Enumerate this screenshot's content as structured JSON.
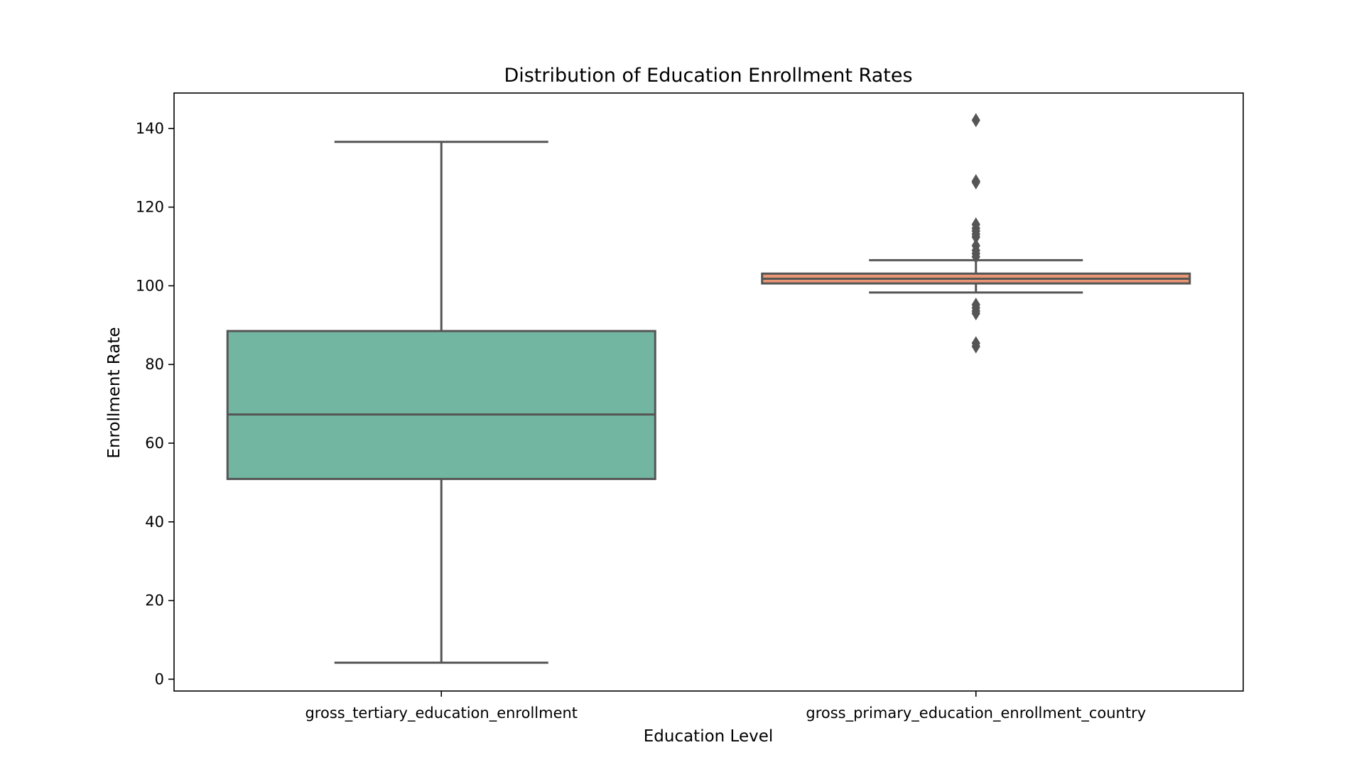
{
  "chart_data": {
    "type": "box",
    "title": "Distribution of Education Enrollment Rates",
    "xlabel": "Education Level",
    "ylabel": "Enrollment Rate",
    "ylim": [
      -3,
      149
    ],
    "yticks": [
      0,
      20,
      40,
      60,
      80,
      100,
      120,
      140
    ],
    "grid": false,
    "legend": "none",
    "categories": [
      "gross_tertiary_education_enrollment",
      "gross_primary_education_enrollment_country"
    ],
    "boxes": [
      {
        "category": "gross_tertiary_education_enrollment",
        "whisker_low": 4.2,
        "q1": 50.9,
        "median": 67.3,
        "q3": 88.5,
        "whisker_high": 136.6,
        "outliers": [],
        "color": "#72b6a1"
      },
      {
        "category": "gross_primary_education_enrollment_country",
        "whisker_low": 98.3,
        "q1": 100.6,
        "median": 101.8,
        "q3": 103.1,
        "whisker_high": 106.5,
        "outliers": [
          142.1,
          126.6,
          126.3,
          115.6,
          114.6,
          113.9,
          113.1,
          112.4,
          110.2,
          109.0,
          108.2,
          107.4,
          95.2,
          94.4,
          93.6,
          93.0,
          85.4,
          84.6
        ],
        "color": "#e99675"
      }
    ],
    "line_color": "#555555"
  }
}
